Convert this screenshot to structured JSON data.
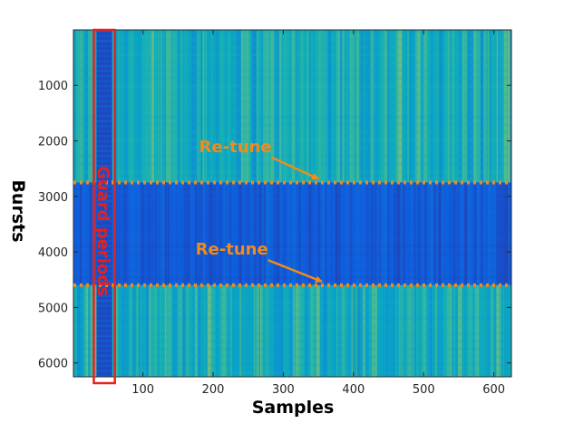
{
  "chart_data": {
    "type": "heatmap",
    "title": "",
    "xlabel": "Samples",
    "ylabel": "Bursts",
    "xlim": [
      1,
      625
    ],
    "ylim": [
      1,
      6250
    ],
    "y_reversed": true,
    "xticks": [
      100,
      200,
      300,
      400,
      500,
      600
    ],
    "yticks": [
      1000,
      2000,
      3000,
      4000,
      5000,
      6000
    ],
    "grid": false,
    "colormap": "parula",
    "regions": [
      {
        "kind": "noise",
        "bursts": [
          1,
          2750
        ],
        "level": "high"
      },
      {
        "kind": "signal",
        "bursts": [
          2750,
          4600
        ],
        "level": "low"
      },
      {
        "kind": "noise",
        "bursts": [
          4600,
          6250
        ],
        "level": "high"
      }
    ],
    "guard_period": {
      "samples": [
        30,
        60
      ],
      "label": "Guard periods"
    },
    "annotations": [
      {
        "text": "Re-tune",
        "burst": 2750,
        "label_sample": 180,
        "label_burst": 2200,
        "arrow_to_sample": 350
      },
      {
        "text": "Re-tune",
        "burst": 4600,
        "label_sample": 175,
        "label_burst": 4050,
        "arrow_to_sample": 355
      }
    ]
  },
  "colors": {
    "annotation": "#f08b1c",
    "guard_box": "#e8201c",
    "signal_band": "#2a48d6",
    "noise_base": "#2aa0b0"
  }
}
